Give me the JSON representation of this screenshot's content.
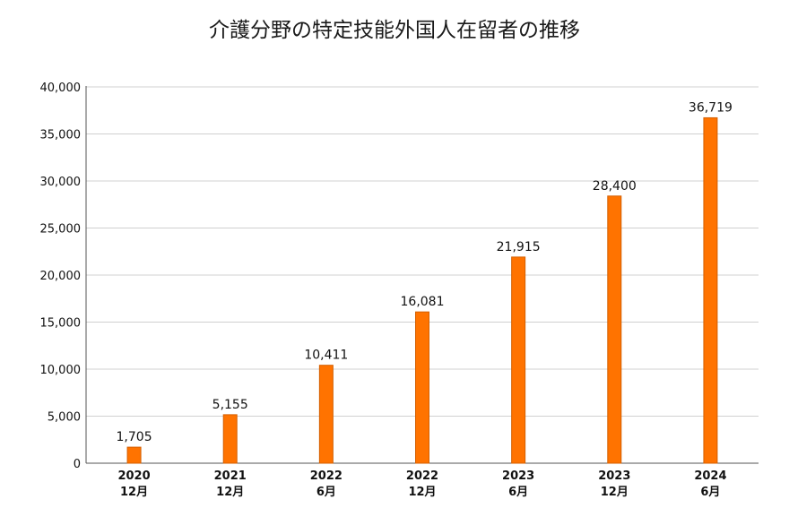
{
  "title": "介護分野の特定技能外国人在留者の推移",
  "colors": {
    "bar": "#ff7300",
    "bar_edge": "#d45f00",
    "grid": "#d0d0d0",
    "axis": "#555555"
  },
  "chart_data": {
    "type": "bar",
    "title": "介護分野の特定技能外国人在留者の推移",
    "categories": [
      {
        "year": "2020",
        "month": "12月"
      },
      {
        "year": "2021",
        "month": "12月"
      },
      {
        "year": "2022",
        "month": "6月"
      },
      {
        "year": "2022",
        "month": "12月"
      },
      {
        "year": "2023",
        "month": "6月"
      },
      {
        "year": "2023",
        "month": "12月"
      },
      {
        "year": "2024",
        "month": "6月"
      }
    ],
    "values": [
      1705,
      5155,
      10411,
      16081,
      21915,
      28400,
      36719
    ],
    "value_labels": [
      "1,705",
      "5,155",
      "10,411",
      "16,081",
      "21,915",
      "28,400",
      "36,719"
    ],
    "xlabel": "",
    "ylabel": "",
    "ylim": [
      0,
      40000
    ],
    "yticks": [
      0,
      5000,
      10000,
      15000,
      20000,
      25000,
      30000,
      35000,
      40000
    ],
    "ytick_labels": [
      "0",
      "5,000",
      "10,000",
      "15,000",
      "20,000",
      "25,000",
      "30,000",
      "35,000",
      "40,000"
    ],
    "grid": true,
    "legend": false
  }
}
